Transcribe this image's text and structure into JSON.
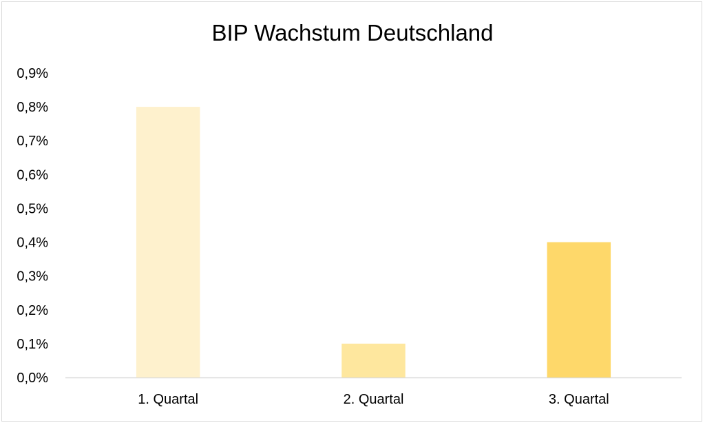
{
  "chart_data": {
    "type": "bar",
    "title": "BIP Wachstum Deutschland",
    "xlabel": "",
    "ylabel": "",
    "categories": [
      "1. Quartal",
      "2. Quartal",
      "3. Quartal"
    ],
    "values": [
      0.8,
      0.1,
      0.4
    ],
    "value_unit": "%",
    "ylim": [
      0,
      0.9
    ],
    "yticks": [
      0.0,
      0.1,
      0.2,
      0.3,
      0.4,
      0.5,
      0.6,
      0.7,
      0.8,
      0.9
    ],
    "ytick_labels": [
      "0,0%",
      "0,1%",
      "0,2%",
      "0,3%",
      "0,4%",
      "0,5%",
      "0,6%",
      "0,7%",
      "0,8%",
      "0,9%"
    ],
    "grid": false,
    "legend": "none",
    "bar_colors": [
      "#fef1cd",
      "#fee79e",
      "#fed86a"
    ],
    "axis_color": "#d9d9d9"
  }
}
